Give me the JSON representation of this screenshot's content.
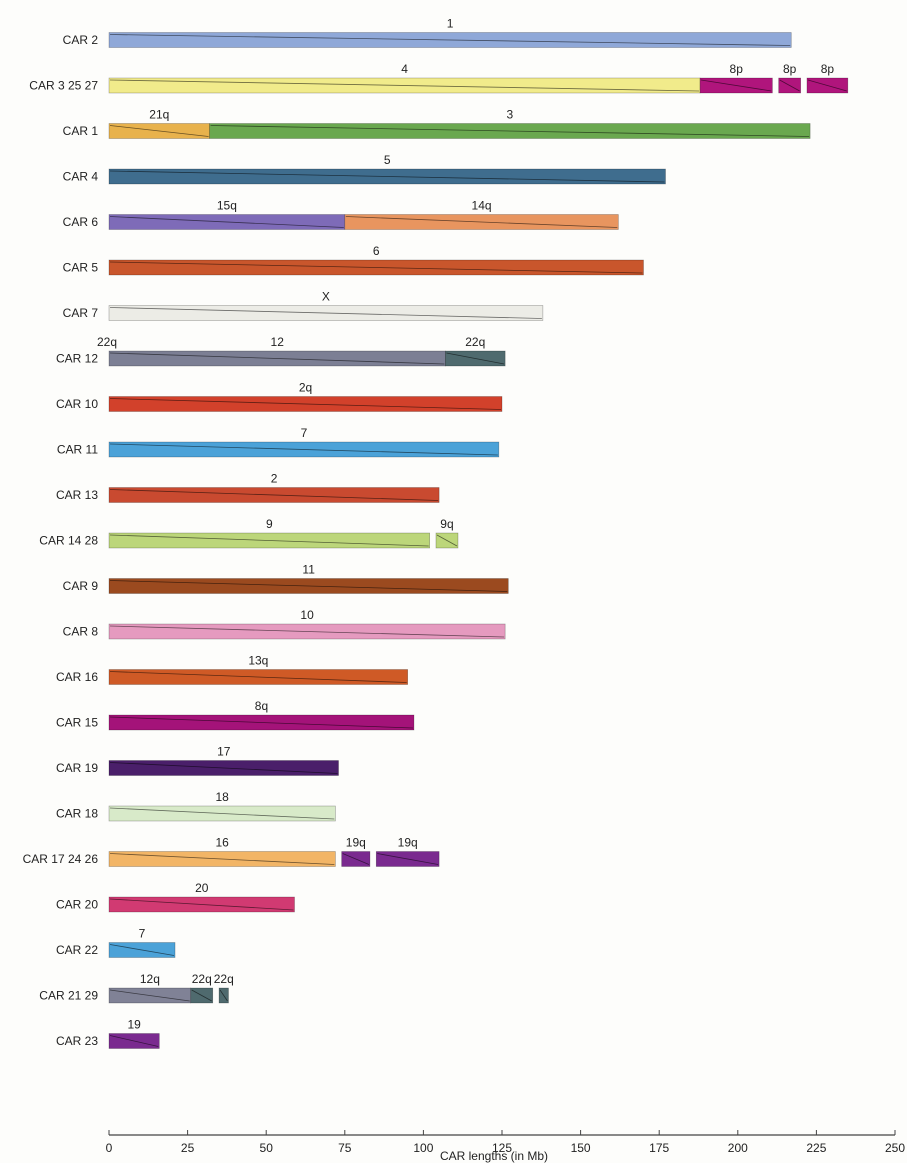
{
  "chart_data": {
    "type": "bar",
    "orientation": "horizontal",
    "xlabel": "CAR lengths (in Mb)",
    "xlim": [
      0,
      250
    ],
    "xticks": [
      0,
      25,
      50,
      75,
      100,
      125,
      150,
      175,
      200,
      225,
      250
    ],
    "rows": [
      {
        "label": "CAR 2",
        "segments": [
          {
            "start": 0,
            "end": 217,
            "color": "#8fa8d8",
            "name": "1"
          }
        ]
      },
      {
        "label": "CAR 3 25 27",
        "segments": [
          {
            "start": 0,
            "end": 188,
            "color": "#f1eb8b",
            "name": "4"
          },
          {
            "start": 188,
            "end": 211,
            "color": "#b0157c",
            "name": "8p"
          },
          {
            "start": 213,
            "end": 220,
            "color": "#b0157c",
            "name": "8p"
          },
          {
            "start": 222,
            "end": 235,
            "color": "#b0157c",
            "name": "8p"
          }
        ]
      },
      {
        "label": "CAR 1",
        "segments": [
          {
            "start": 0,
            "end": 32,
            "color": "#e8b24c",
            "name": "21q"
          },
          {
            "start": 32,
            "end": 223,
            "color": "#6aa84f",
            "name": "3"
          }
        ]
      },
      {
        "label": "CAR 4",
        "segments": [
          {
            "start": 0,
            "end": 177,
            "color": "#3f6d8e",
            "name": "5"
          }
        ]
      },
      {
        "label": "CAR 6",
        "segments": [
          {
            "start": 0,
            "end": 75,
            "color": "#7e6bb8",
            "name": "15q"
          },
          {
            "start": 75,
            "end": 162,
            "color": "#e8955f",
            "name": "14q"
          }
        ]
      },
      {
        "label": "CAR 5",
        "segments": [
          {
            "start": 0,
            "end": 170,
            "color": "#c9562c",
            "name": "6"
          }
        ]
      },
      {
        "label": "CAR 7",
        "segments": [
          {
            "start": 0,
            "end": 138,
            "color": "#ecece6",
            "name": "X"
          }
        ]
      },
      {
        "label": "CAR 12",
        "segments": [
          {
            "start": 0,
            "end": 107,
            "color": "#7c7f94",
            "name": "12"
          },
          {
            "start": 107,
            "end": 126,
            "color": "#4f6a6e",
            "name": "22q"
          }
        ],
        "extra_labels": [
          {
            "text": "22q",
            "x": 0
          }
        ]
      },
      {
        "label": "CAR 10",
        "segments": [
          {
            "start": 0,
            "end": 125,
            "color": "#d2412b",
            "name": "2q"
          }
        ]
      },
      {
        "label": "CAR 11",
        "segments": [
          {
            "start": 0,
            "end": 124,
            "color": "#4ba2d8",
            "name": "7"
          }
        ]
      },
      {
        "label": "CAR 13",
        "segments": [
          {
            "start": 0,
            "end": 105,
            "color": "#c94a30",
            "name": "2"
          }
        ]
      },
      {
        "label": "CAR 14 28",
        "segments": [
          {
            "start": 0,
            "end": 102,
            "color": "#bcd67a",
            "name": "9"
          },
          {
            "start": 104,
            "end": 111,
            "color": "#bcd67a",
            "name": "9q"
          }
        ]
      },
      {
        "label": "CAR 9",
        "segments": [
          {
            "start": 0,
            "end": 127,
            "color": "#9b4a1f",
            "name": "11"
          }
        ]
      },
      {
        "label": "CAR 8",
        "segments": [
          {
            "start": 0,
            "end": 126,
            "color": "#e59abf",
            "name": "10"
          }
        ]
      },
      {
        "label": "CAR 16",
        "segments": [
          {
            "start": 0,
            "end": 95,
            "color": "#cf5a26",
            "name": "13q"
          }
        ]
      },
      {
        "label": "CAR 15",
        "segments": [
          {
            "start": 0,
            "end": 97,
            "color": "#a41379",
            "name": "8q"
          }
        ]
      },
      {
        "label": "CAR 19",
        "segments": [
          {
            "start": 0,
            "end": 73,
            "color": "#4a1f6a",
            "name": "17"
          }
        ]
      },
      {
        "label": "CAR 18",
        "segments": [
          {
            "start": 0,
            "end": 72,
            "color": "#d8eac9",
            "name": "18"
          }
        ]
      },
      {
        "label": "CAR 17 24 26",
        "segments": [
          {
            "start": 0,
            "end": 72,
            "color": "#f2b566",
            "name": "16"
          },
          {
            "start": 74,
            "end": 83,
            "color": "#7a2a8f",
            "name": "19q"
          },
          {
            "start": 85,
            "end": 105,
            "color": "#7a2a8f",
            "name": "19q"
          }
        ]
      },
      {
        "label": "CAR 20",
        "segments": [
          {
            "start": 0,
            "end": 59,
            "color": "#d13a72",
            "name": "20"
          }
        ]
      },
      {
        "label": "CAR 22",
        "segments": [
          {
            "start": 0,
            "end": 21,
            "color": "#4ba2d8",
            "name": "7"
          }
        ]
      },
      {
        "label": "CAR 21 29",
        "segments": [
          {
            "start": 0,
            "end": 26,
            "color": "#808296",
            "name": "12q"
          },
          {
            "start": 26,
            "end": 33,
            "color": "#4f6a6e",
            "name": "22q"
          },
          {
            "start": 35,
            "end": 38,
            "color": "#4f6a6e",
            "name": "22q"
          }
        ]
      },
      {
        "label": "CAR 23",
        "segments": [
          {
            "start": 0,
            "end": 16,
            "color": "#7a2a8f",
            "name": "19"
          }
        ]
      }
    ],
    "grid": false,
    "legend": "none"
  }
}
